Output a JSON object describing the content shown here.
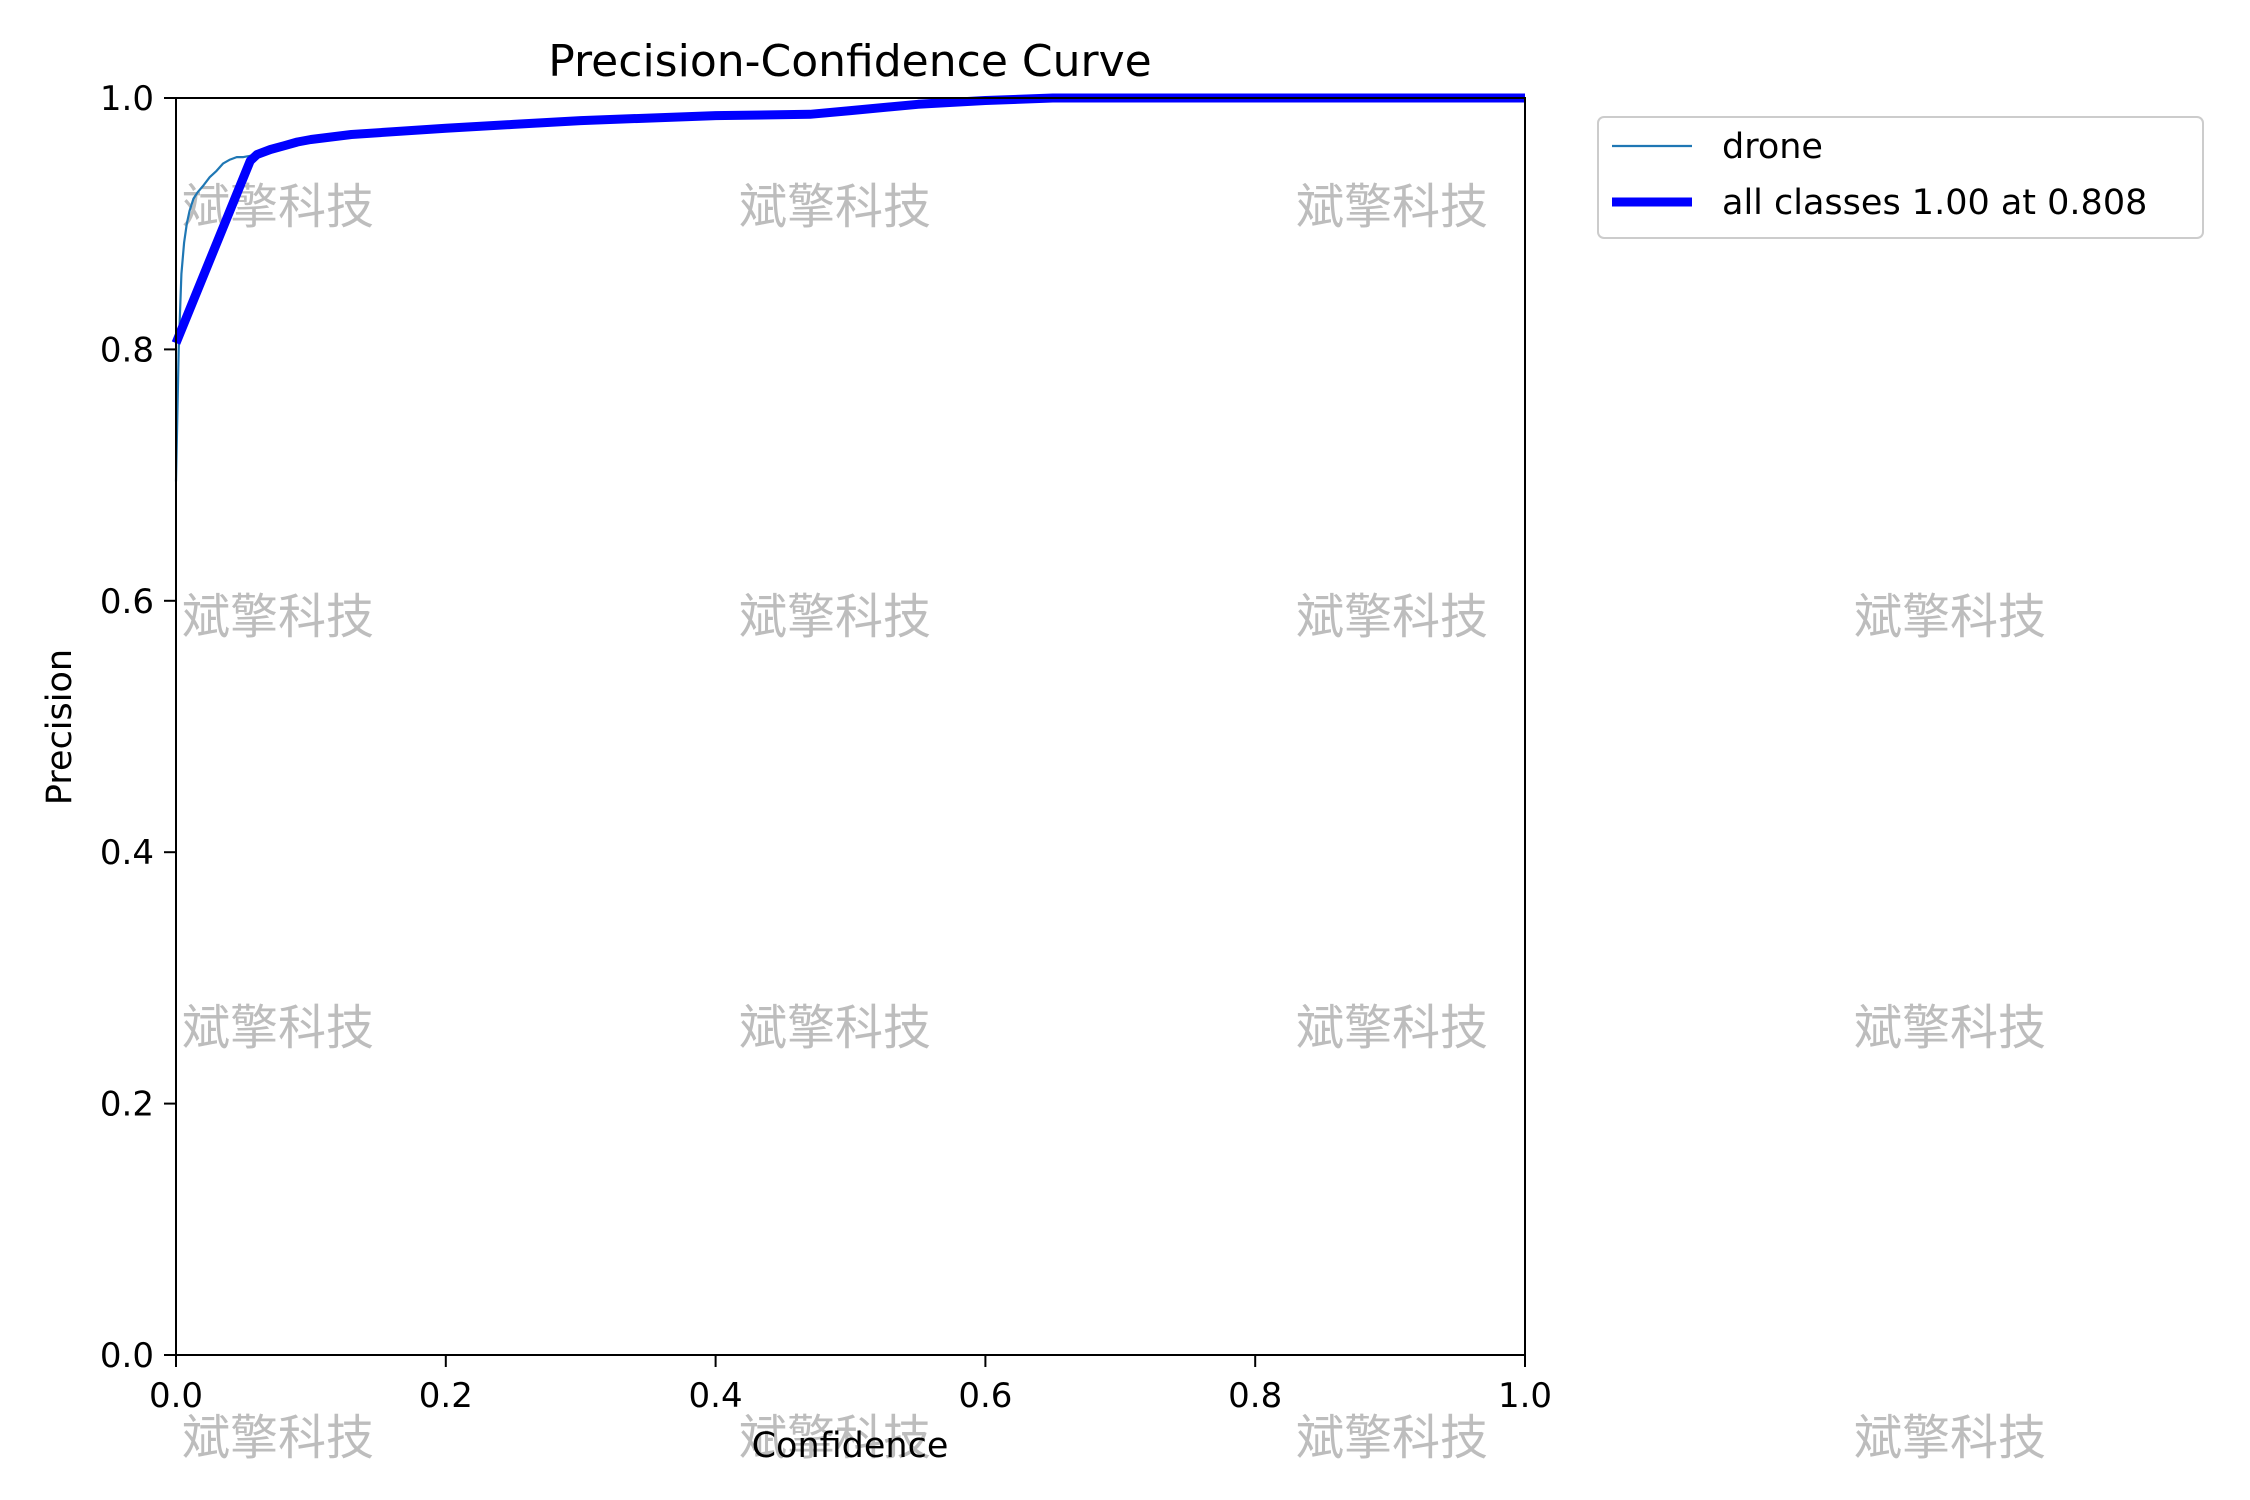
{
  "watermark": "斌擎科技",
  "chart_data": {
    "type": "line",
    "title": "Precision-Confidence Curve",
    "xlabel": "Confidence",
    "ylabel": "Precision",
    "xlim": [
      0.0,
      1.0
    ],
    "ylim": [
      0.0,
      1.0
    ],
    "xticks": [
      "0.0",
      "0.2",
      "0.4",
      "0.6",
      "0.8",
      "1.0"
    ],
    "yticks": [
      "0.0",
      "0.2",
      "0.4",
      "0.6",
      "0.8",
      "1.0"
    ],
    "grid": false,
    "legend_position": "outside upper right",
    "series": [
      {
        "name": "drone",
        "color": "#1f77b4",
        "x": [
          0.0,
          0.002,
          0.004,
          0.006,
          0.008,
          0.01,
          0.013,
          0.016,
          0.02,
          0.025,
          0.03,
          0.035,
          0.04,
          0.045,
          0.05,
          0.055,
          0.06,
          0.08,
          0.1,
          0.13,
          0.2,
          0.3,
          0.4,
          0.47,
          0.5,
          0.55,
          0.6,
          0.65,
          0.7,
          0.8,
          0.9,
          1.0
        ],
        "y": [
          0.695,
          0.8,
          0.86,
          0.885,
          0.9,
          0.91,
          0.92,
          0.925,
          0.93,
          0.937,
          0.942,
          0.948,
          0.951,
          0.953,
          0.953,
          0.954,
          0.955,
          0.963,
          0.967,
          0.971,
          0.976,
          0.982,
          0.986,
          0.987,
          0.99,
          0.995,
          0.998,
          1.0,
          1.0,
          1.0,
          1.0,
          1.0
        ]
      },
      {
        "name": "all classes 1.00 at 0.808",
        "color": "#0000ff",
        "x": [
          0.0,
          0.055,
          0.06,
          0.07,
          0.08,
          0.09,
          0.1,
          0.13,
          0.2,
          0.25,
          0.3,
          0.4,
          0.47,
          0.5,
          0.55,
          0.6,
          0.65,
          0.7,
          0.8,
          1.0
        ],
        "y": [
          0.805,
          0.95,
          0.955,
          0.959,
          0.962,
          0.965,
          0.967,
          0.971,
          0.976,
          0.979,
          0.982,
          0.986,
          0.987,
          0.99,
          0.995,
          0.998,
          1.0,
          1.0,
          1.0,
          1.0
        ]
      }
    ]
  }
}
